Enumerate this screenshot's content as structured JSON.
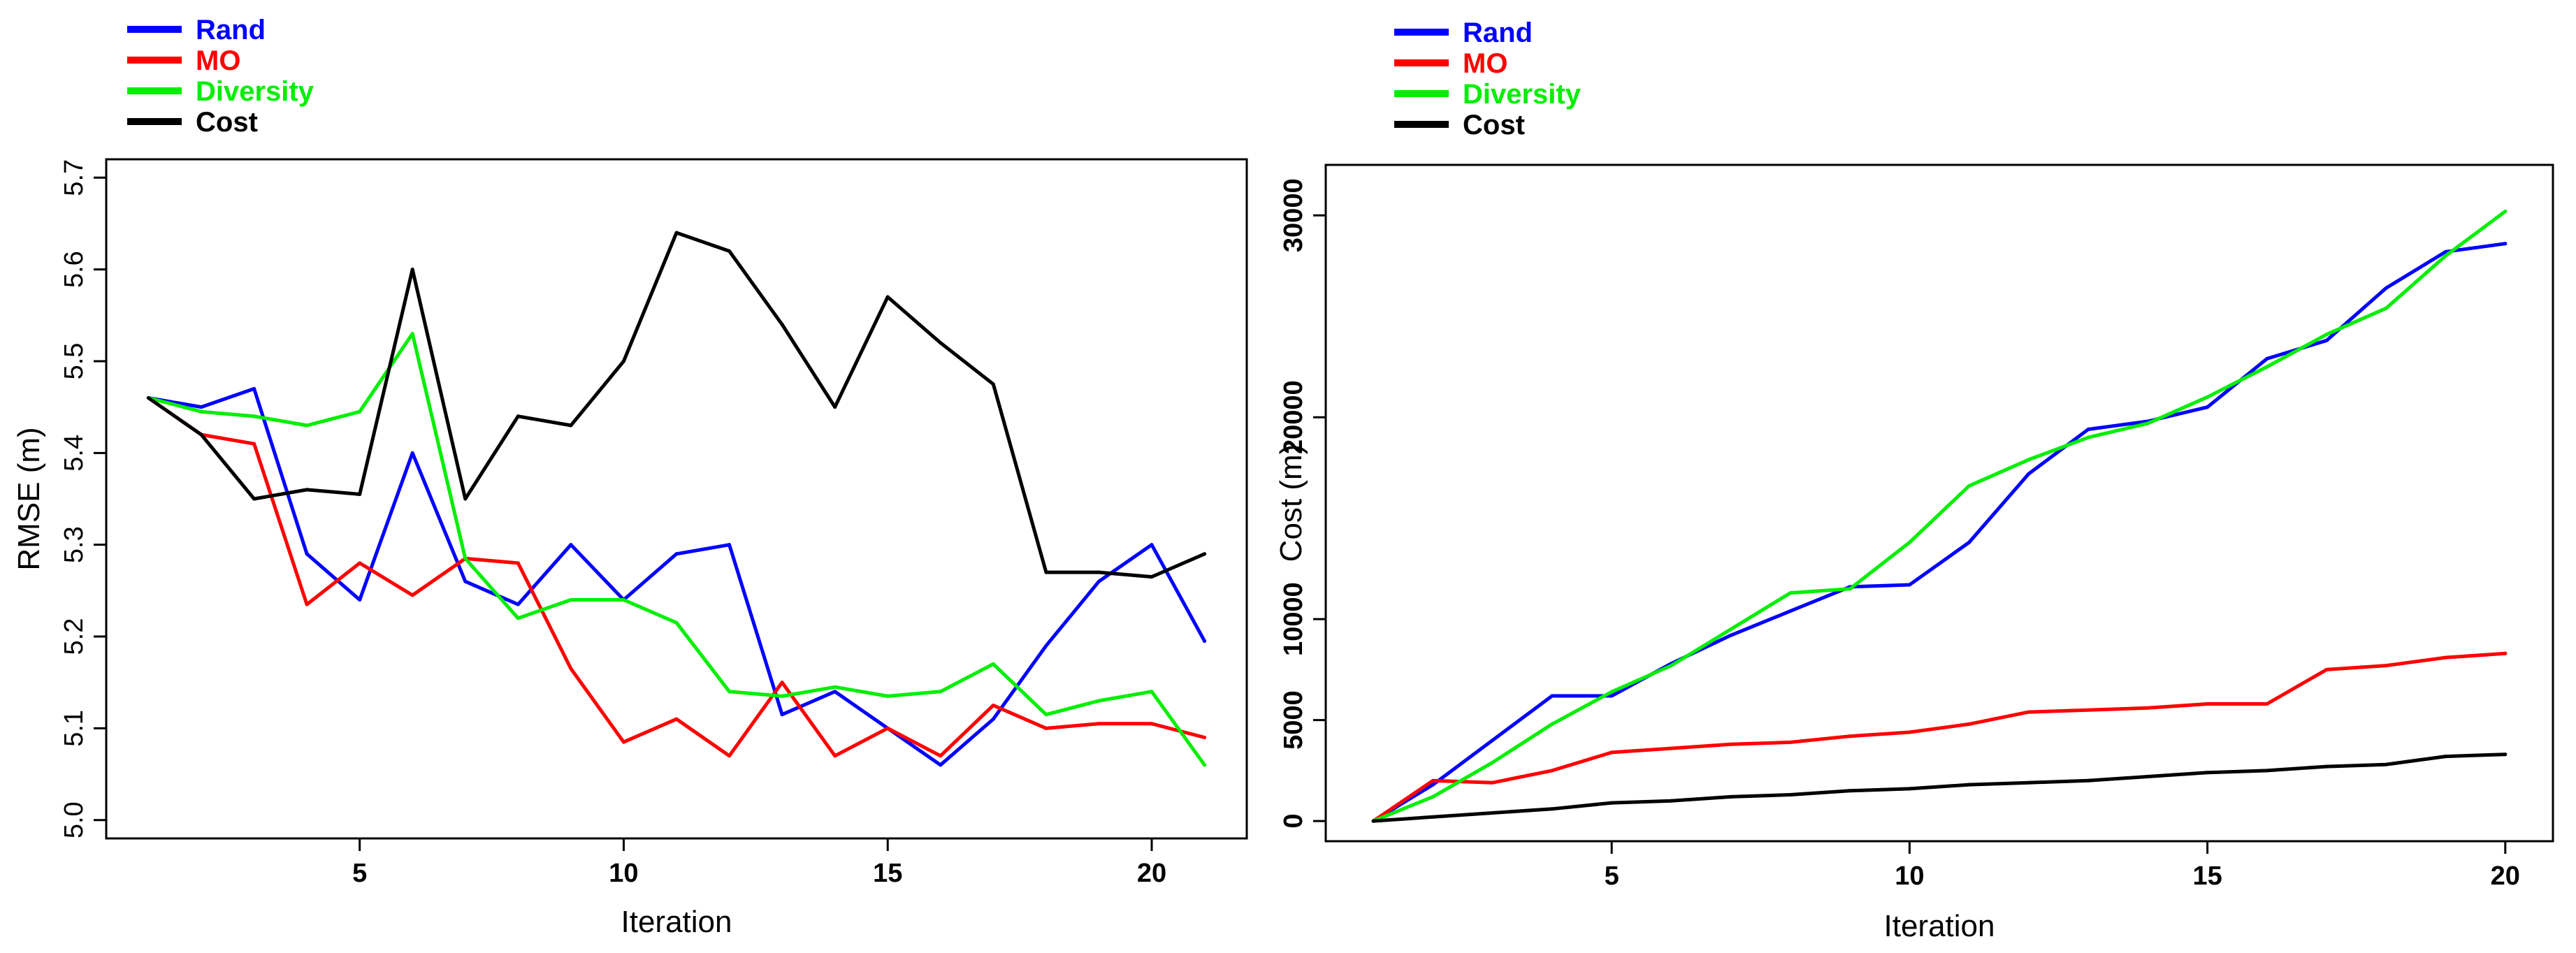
{
  "chart_data": [
    {
      "type": "line",
      "title": "",
      "xlabel": "Iteration",
      "ylabel": "RMSE (m)",
      "xlim": [
        0.2,
        21.8
      ],
      "ylim": [
        4.98,
        5.72
      ],
      "xticks": [
        5,
        10,
        15,
        20
      ],
      "yticks": [
        5.0,
        5.1,
        5.2,
        5.3,
        5.4,
        5.5,
        5.6,
        5.7
      ],
      "x": [
        1,
        2,
        3,
        4,
        5,
        6,
        7,
        8,
        9,
        10,
        11,
        12,
        13,
        14,
        15,
        16,
        17,
        18,
        19,
        20,
        21
      ],
      "legend_position": "top-left outside",
      "series": [
        {
          "name": "Rand",
          "color": "#0000ff",
          "values": [
            5.46,
            5.45,
            5.47,
            5.29,
            5.24,
            5.4,
            5.26,
            5.235,
            5.3,
            5.24,
            5.29,
            5.3,
            5.115,
            5.14,
            5.1,
            5.06,
            5.11,
            5.19,
            5.26,
            5.3,
            5.195
          ]
        },
        {
          "name": "MO",
          "color": "#ff0000",
          "values": [
            5.46,
            5.42,
            5.41,
            5.235,
            5.28,
            5.245,
            5.285,
            5.28,
            5.165,
            5.085,
            5.11,
            5.07,
            5.15,
            5.07,
            5.1,
            5.07,
            5.125,
            5.1,
            5.105,
            5.105,
            5.09
          ]
        },
        {
          "name": "Diversity",
          "color": "#00ee00",
          "values": [
            5.46,
            5.445,
            5.44,
            5.43,
            5.445,
            5.53,
            5.285,
            5.22,
            5.24,
            5.24,
            5.215,
            5.14,
            5.135,
            5.145,
            5.135,
            5.14,
            5.17,
            5.115,
            5.13,
            5.14,
            5.06
          ]
        },
        {
          "name": "Cost",
          "color": "#000000",
          "values": [
            5.46,
            5.42,
            5.35,
            5.36,
            5.355,
            5.6,
            5.35,
            5.44,
            5.43,
            5.5,
            5.64,
            5.62,
            5.54,
            5.45,
            5.57,
            5.52,
            5.475,
            5.27,
            5.27,
            5.265,
            5.29
          ]
        }
      ]
    },
    {
      "type": "line",
      "title": "",
      "xlabel": "Iteration",
      "ylabel": "Cost (m)",
      "xlim": [
        0.2,
        20.8
      ],
      "ylim": [
        -1000,
        32500
      ],
      "xticks": [
        5,
        10,
        15,
        20
      ],
      "yticks": [
        0,
        5000,
        10000,
        20000,
        30000
      ],
      "x": [
        1,
        2,
        3,
        4,
        5,
        6,
        7,
        8,
        9,
        10,
        11,
        12,
        13,
        14,
        15,
        16,
        17,
        18,
        19,
        20
      ],
      "legend_position": "top-left outside",
      "series": [
        {
          "name": "Rand",
          "color": "#0000ff",
          "values": [
            0,
            1800,
            4000,
            6200,
            6200,
            7800,
            9200,
            10400,
            11600,
            11700,
            13800,
            17200,
            19400,
            19800,
            20500,
            22900,
            23800,
            26400,
            28200,
            28600
          ]
        },
        {
          "name": "MO",
          "color": "#ff0000",
          "values": [
            0,
            2000,
            1900,
            2500,
            3400,
            3600,
            3800,
            3900,
            4200,
            4400,
            4800,
            5400,
            5500,
            5600,
            5800,
            5800,
            7500,
            7700,
            8100,
            8300
          ]
        },
        {
          "name": "Diversity",
          "color": "#00ee00",
          "values": [
            0,
            1200,
            2900,
            4800,
            6400,
            7700,
            9500,
            11300,
            11500,
            13800,
            16600,
            17900,
            19000,
            19700,
            21000,
            22500,
            24100,
            25400,
            28000,
            30200
          ]
        },
        {
          "name": "Cost",
          "color": "#000000",
          "values": [
            0,
            200,
            400,
            600,
            900,
            1000,
            1200,
            1300,
            1500,
            1600,
            1800,
            1900,
            2000,
            2200,
            2400,
            2500,
            2700,
            2800,
            3200,
            3300
          ]
        }
      ]
    }
  ]
}
